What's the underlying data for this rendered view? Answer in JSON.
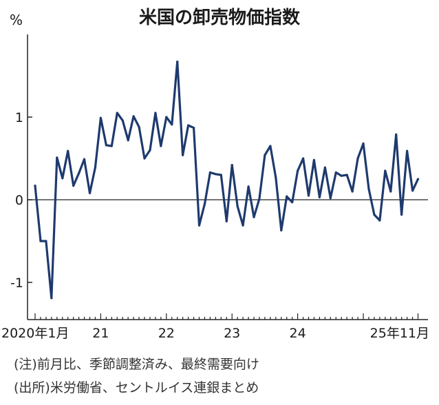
{
  "chart_data": {
    "type": "line",
    "title": "米国の卸売物価指数",
    "ylabel": "%",
    "xlabel": "",
    "ylim": [
      -1.45,
      2.0
    ],
    "yticks": [
      {
        "value": 1,
        "label": "1"
      },
      {
        "value": 0,
        "label": "0"
      },
      {
        "value": -1,
        "label": "-1"
      }
    ],
    "xticks": [
      {
        "index": 0,
        "label": "2020年1月"
      },
      {
        "index": 12,
        "label": "21"
      },
      {
        "index": 24,
        "label": "22"
      },
      {
        "index": 36,
        "label": "23"
      },
      {
        "index": 48,
        "label": "24"
      },
      {
        "index": 70,
        "label": "25年11月"
      }
    ],
    "zero_line": true,
    "grid": false,
    "series": [
      {
        "color": "#1e3a6e",
        "values": [
          0.17,
          -0.5,
          -0.5,
          -1.19,
          0.51,
          0.26,
          0.59,
          0.17,
          0.32,
          0.49,
          0.08,
          0.39,
          0.99,
          0.66,
          0.65,
          1.05,
          0.96,
          0.72,
          1.01,
          0.88,
          0.5,
          0.6,
          1.05,
          0.65,
          1.0,
          0.91,
          1.67,
          0.54,
          0.9,
          0.87,
          -0.31,
          -0.05,
          0.33,
          0.31,
          0.3,
          -0.26,
          0.42,
          -0.08,
          -0.31,
          0.16,
          -0.21,
          0.01,
          0.54,
          0.65,
          0.27,
          -0.37,
          0.04,
          -0.03,
          0.35,
          0.5,
          0.05,
          0.48,
          0.03,
          0.39,
          0.02,
          0.33,
          0.29,
          0.3,
          0.1,
          0.5,
          0.68,
          0.13,
          -0.18,
          -0.25,
          0.35,
          0.1,
          0.79,
          -0.18,
          0.59,
          0.11,
          0.25
        ]
      }
    ]
  },
  "notes": {
    "line1": "(注)前月比、季節調整済み、最終需要向け",
    "line2": "(出所)米労働省、セントルイス連銀まとめ"
  }
}
